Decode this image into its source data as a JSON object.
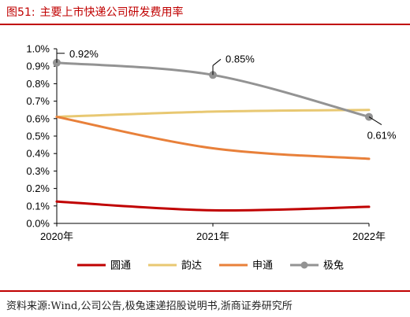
{
  "figure": {
    "number": "图51:",
    "title": "主要上市快递公司研发费用率"
  },
  "source": "资料来源:Wind,公司公告,极兔速递招股说明书,浙商证券研究所",
  "colors": {
    "accent": "#c00000"
  },
  "chart_data": {
    "type": "line",
    "x": [
      "2020年",
      "2021年",
      "2022年"
    ],
    "ylim": [
      0,
      1.0
    ],
    "ytick_labels": [
      "0.0%",
      "0.1%",
      "0.2%",
      "0.3%",
      "0.4%",
      "0.5%",
      "0.6%",
      "0.7%",
      "0.8%",
      "0.9%",
      "1.0%"
    ],
    "grid": false,
    "legend_position": "bottom",
    "series": [
      {
        "name": "圆通",
        "color": "#c00000",
        "marker": false,
        "values": [
          0.125,
          0.075,
          0.095
        ]
      },
      {
        "name": "韵达",
        "color": "#e8c872",
        "marker": false,
        "values": [
          0.61,
          0.64,
          0.65
        ]
      },
      {
        "name": "申通",
        "color": "#e8803a",
        "marker": false,
        "values": [
          0.61,
          0.43,
          0.37
        ]
      },
      {
        "name": "极兔",
        "color": "#939393",
        "marker": true,
        "values": [
          0.92,
          0.85,
          0.61
        ]
      }
    ],
    "annotations": [
      {
        "series": "极兔",
        "index": 0,
        "text": "0.92%"
      },
      {
        "series": "极兔",
        "index": 1,
        "text": "0.85%"
      },
      {
        "series": "极兔",
        "index": 2,
        "text": "0.61%"
      }
    ]
  }
}
